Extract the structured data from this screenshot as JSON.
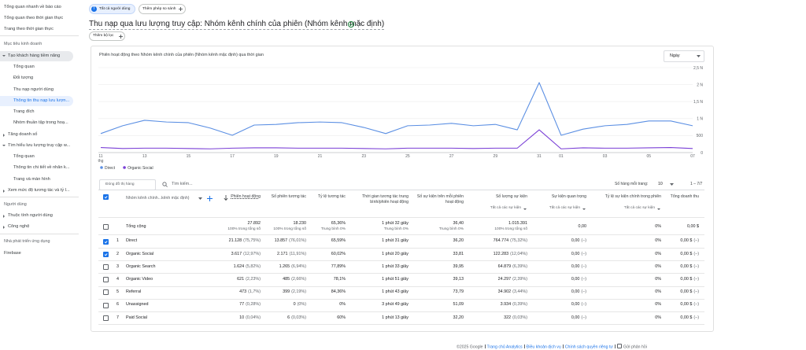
{
  "sidebar": [
    "Tổng quan nhanh về báo cáo",
    "Tổng quan theo thời gian thực",
    "Trang theo thời gian thực",
    "Mục tiêu kinh doanh",
    "Tạo khách hàng tiềm năng",
    "Tổng quan",
    "Đối tượng",
    "Thu nạp người dùng",
    "Thông tin thu nạp lưu lượn...",
    "Trang đích",
    "Nhóm thuần tập trong hoạ...",
    "Tăng doanh số",
    "Tìm hiểu lưu lượng truy cập w...",
    "Tổng quan",
    "Thông tin chi tiết về nhân k...",
    "Trang và màn hình",
    "Xem mức độ tương tác và tỷ l...",
    "Người dùng",
    "Thuộc tính người dùng",
    "Công nghệ",
    "Nhà phát triển ứng dụng",
    "Firebase"
  ],
  "header": {
    "user_chip": {
      "avatar": "T",
      "label": "Tất cả người dùng"
    },
    "compare_chip": "Thêm phép so sánh",
    "title": "Thu nạp qua lưu lượng truy cập: Nhóm kênh chính của phiên (Nhóm kênh mặc định)",
    "filter_chip": "Thêm bộ lọc"
  },
  "chart_data": {
    "type": "line",
    "title": "Phiên hoạt động theo Nhóm kênh chính của phiên (Nhóm kênh mặc định) qua thời gian",
    "period_select": "Ngày",
    "categories": [
      "11",
      null,
      "13",
      null,
      "15",
      null,
      "17",
      null,
      "19",
      null,
      "21",
      null,
      "23",
      null,
      "25",
      null,
      "27",
      null,
      "29",
      null,
      "31",
      "01",
      null,
      "03",
      null,
      "05",
      null,
      "07"
    ],
    "x_sublabel": "thg",
    "series": [
      {
        "name": "Direct",
        "color": "#5b8fe3",
        "values": [
          560,
          790,
          950,
          900,
          880,
          720,
          510,
          810,
          830,
          880,
          900,
          880,
          740,
          560,
          790,
          810,
          860,
          790,
          830,
          670,
          2060,
          510,
          690,
          790,
          830,
          930,
          930,
          790
        ]
      },
      {
        "name": "Organic Social",
        "color": "#7a3fd6",
        "values": [
          150,
          120,
          130,
          130,
          120,
          110,
          130,
          140,
          140,
          130,
          130,
          130,
          120,
          110,
          130,
          130,
          130,
          120,
          130,
          130,
          670,
          110,
          140,
          130,
          130,
          140,
          150,
          120
        ]
      }
    ],
    "ylim": [
      0,
      2500
    ],
    "yticks": [
      0,
      500,
      {
        "value": 1000,
        "label": "1 N"
      },
      {
        "value": 1500,
        "label": "1,5 N"
      },
      {
        "value": 2000,
        "label": "2 N"
      },
      {
        "value": 2500,
        "label": "2,5 N"
      }
    ],
    "grid": true,
    "legend": "bottom-left"
  },
  "table": {
    "toggle_button": "Đóng đồ thị hàng",
    "search_placeholder": "Tìm kiếm...",
    "rows_per_page_label": "Số hàng mỗi trang:",
    "rows_per_page": "10",
    "pagination": "1 – 7/7",
    "dimension_header": "Nhóm kênh chính...kênh mặc định)",
    "columns": [
      {
        "title": "Phiên hoạt động"
      },
      {
        "title": "Số phiên tương tác"
      },
      {
        "title": "Tỷ lệ tương tác"
      },
      {
        "title": "Thời gian tương tác trung bình/phiên hoạt động"
      },
      {
        "title": "Số sự kiện trên mỗi phiên hoạt động"
      },
      {
        "title": "Số lượng sự kiện",
        "subtitle": "Tất cả các sự kiện"
      },
      {
        "title": "Sự kiện quan trọng",
        "subtitle": "Tất cả các sự kiện"
      },
      {
        "title": "Tỷ lệ sự kiện chính trong phiên",
        "subtitle": "Tất cả các sự kiện"
      },
      {
        "title": "Tổng doanh thu"
      }
    ],
    "total": {
      "label": "Tổng cộng",
      "cells": [
        [
          "27.892",
          "100% trong tổng số"
        ],
        [
          "18.230",
          "100% trong tổng số"
        ],
        [
          "65,36%",
          "Trung bình 0%"
        ],
        [
          "1 phút 32 giây",
          "Trung bình 0%"
        ],
        [
          "36,40",
          "Trung bình 0%"
        ],
        [
          "1.015.391",
          "100% trong tổng số"
        ],
        [
          "0,00"
        ],
        [
          "0%"
        ],
        [
          "0,00 $"
        ]
      ]
    },
    "rows": [
      {
        "checked": true,
        "index": "1",
        "name": "Direct",
        "cells": [
          [
            "21.128",
            "(75,75%)"
          ],
          [
            "13.857",
            "(76,01%)"
          ],
          [
            "65,59%"
          ],
          [
            "1 phút 31 giây"
          ],
          [
            "36,20"
          ],
          [
            "764.774",
            "(75,32%)"
          ],
          [
            "0,00",
            "(–)"
          ],
          [
            "0%"
          ],
          [
            "0,00 $",
            "(–)"
          ]
        ]
      },
      {
        "checked": true,
        "index": "2",
        "name": "Organic Social",
        "cells": [
          [
            "3.617",
            "(12,97%)"
          ],
          [
            "2.171",
            "(11,91%)"
          ],
          [
            "60,02%"
          ],
          [
            "1 phút 20 giây"
          ],
          [
            "33,81"
          ],
          [
            "122.283",
            "(12,04%)"
          ],
          [
            "0,00",
            "(–)"
          ],
          [
            "0%"
          ],
          [
            "0,00 $",
            "(–)"
          ]
        ]
      },
      {
        "checked": false,
        "index": "3",
        "name": "Organic Search",
        "cells": [
          [
            "1.624",
            "(5,82%)"
          ],
          [
            "1.265",
            "(6,94%)"
          ],
          [
            "77,89%"
          ],
          [
            "1 phút 33 giây"
          ],
          [
            "39,95"
          ],
          [
            "64.879",
            "(6,39%)"
          ],
          [
            "0,00",
            "(–)"
          ],
          [
            "0%"
          ],
          [
            "0,00 $",
            "(–)"
          ]
        ]
      },
      {
        "checked": false,
        "index": "4",
        "name": "Organic Video",
        "cells": [
          [
            "621",
            "(2,23%)"
          ],
          [
            "485",
            "(2,66%)"
          ],
          [
            "78,1%"
          ],
          [
            "1 phút 51 giây"
          ],
          [
            "39,13"
          ],
          [
            "24.297",
            "(2,39%)"
          ],
          [
            "0,00",
            "(–)"
          ],
          [
            "0%"
          ],
          [
            "0,00 $",
            "(–)"
          ]
        ]
      },
      {
        "checked": false,
        "index": "5",
        "name": "Referral",
        "cells": [
          [
            "473",
            "(1,7%)"
          ],
          [
            "399",
            "(2,19%)"
          ],
          [
            "84,36%"
          ],
          [
            "1 phút 43 giây"
          ],
          [
            "73,79"
          ],
          [
            "34.902",
            "(3,44%)"
          ],
          [
            "0,00",
            "(–)"
          ],
          [
            "0%"
          ],
          [
            "0,00 $",
            "(–)"
          ]
        ]
      },
      {
        "checked": false,
        "index": "6",
        "name": "Unassigned",
        "cells": [
          [
            "77",
            "(0,28%)"
          ],
          [
            "0",
            "(0%)"
          ],
          [
            "0%"
          ],
          [
            "3 phút 49 giây"
          ],
          [
            "51,09"
          ],
          [
            "3.934",
            "(0,39%)"
          ],
          [
            "0,00",
            "(–)"
          ],
          [
            "0%"
          ],
          [
            "0,00 $",
            "(–)"
          ]
        ]
      },
      {
        "checked": false,
        "index": "7",
        "name": "Paid Social",
        "cells": [
          [
            "10",
            "(0,04%)"
          ],
          [
            "6",
            "(0,03%)"
          ],
          [
            "60%"
          ],
          [
            "1 phút 13 giây"
          ],
          [
            "32,20"
          ],
          [
            "322",
            "(0,03%)"
          ],
          [
            "0,00",
            "(–)"
          ],
          [
            "0%"
          ],
          [
            "0,00 $",
            "(–)"
          ]
        ]
      }
    ]
  },
  "footer": [
    "©2025 Google",
    "Trang chủ Analytics",
    "Điều khoản dịch vụ",
    "Chính sách quyền riêng tư",
    "Gửi phản hồi"
  ]
}
